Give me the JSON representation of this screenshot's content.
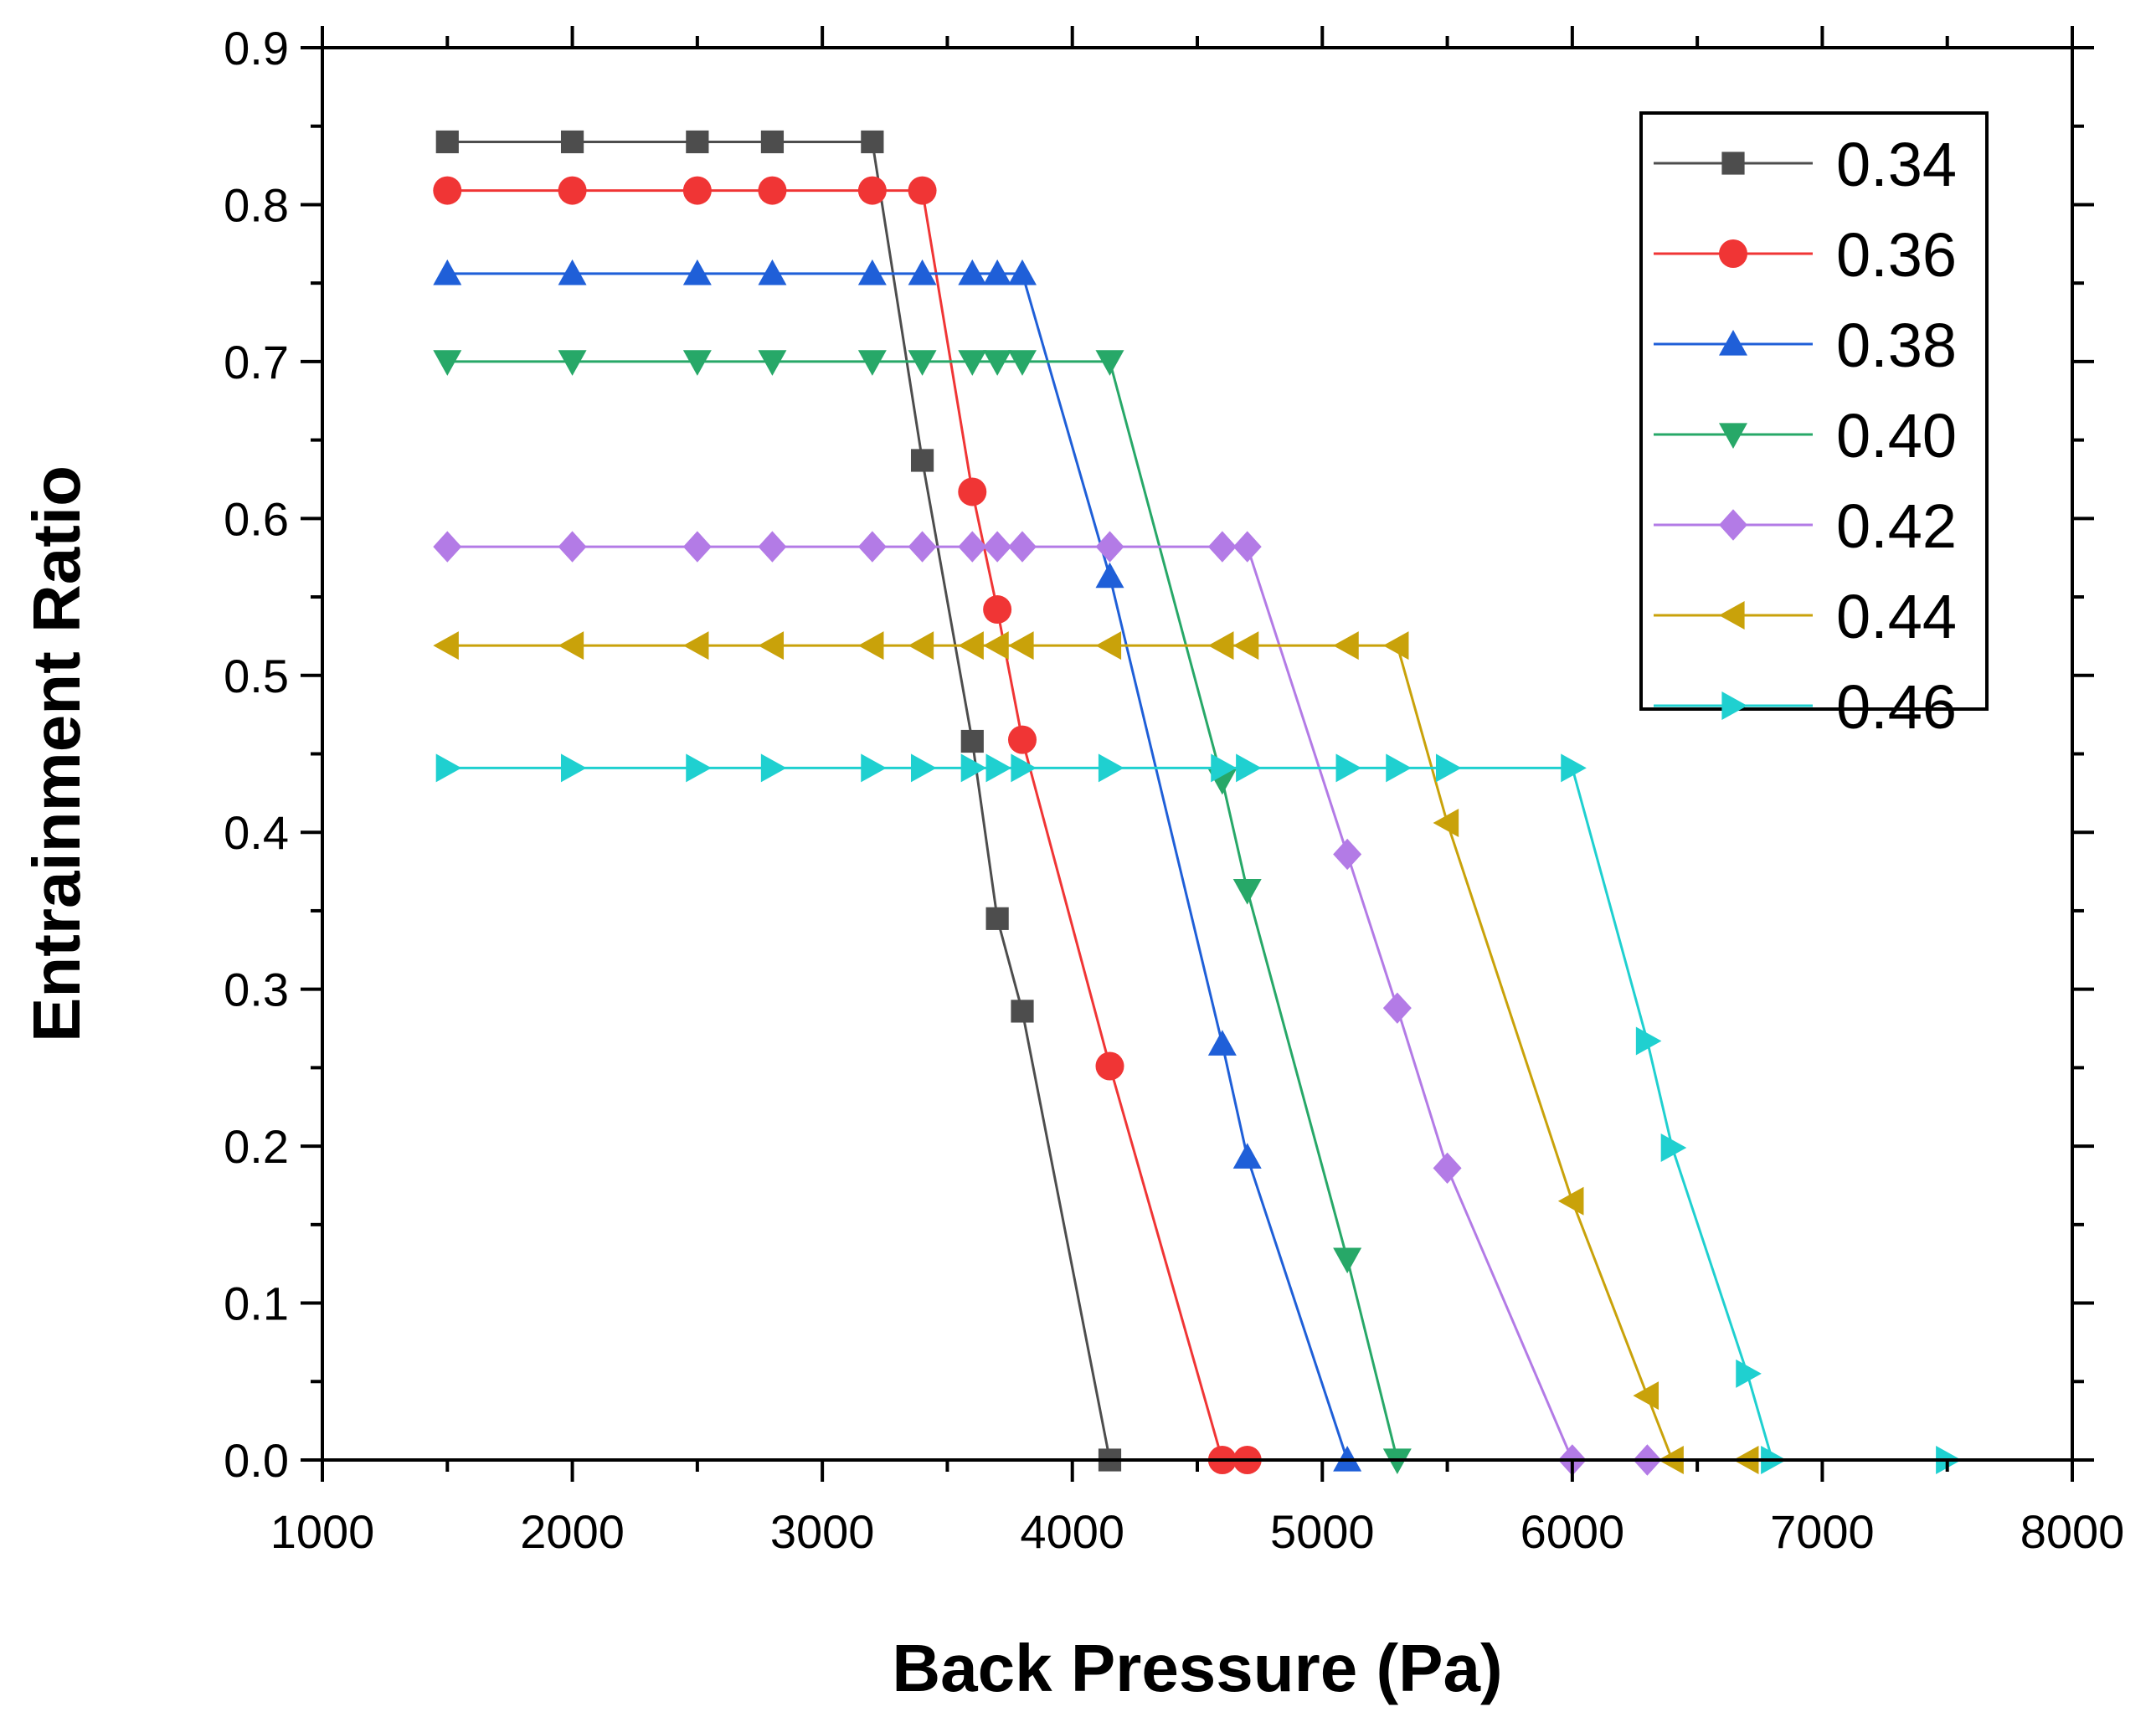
{
  "chart_data": {
    "type": "line",
    "title": "",
    "xlabel": "Back Pressure (Pa)",
    "ylabel": "Entrainment Ratio",
    "xlim": [
      1000,
      8000
    ],
    "ylim": [
      0,
      0.9
    ],
    "xticks": [
      1000,
      2000,
      3000,
      4000,
      5000,
      6000,
      7000,
      8000
    ],
    "yticks": [
      0.0,
      0.1,
      0.2,
      0.3,
      0.4,
      0.5,
      0.6,
      0.7,
      0.8,
      0.9
    ],
    "ytick_labels": [
      "0.0",
      "0.1",
      "0.2",
      "0.3",
      "0.4",
      "0.5",
      "0.6",
      "0.7",
      "0.8",
      "0.9"
    ],
    "grid": false,
    "legend_position": "top-right",
    "series": [
      {
        "name": "0.34",
        "color": "#4d4d4d",
        "marker": "square",
        "x": [
          1500,
          2000,
          2500,
          2800,
          3200,
          3400,
          3600,
          3700,
          3800,
          4150
        ],
        "y": [
          0.84,
          0.84,
          0.84,
          0.84,
          0.84,
          0.637,
          0.458,
          0.345,
          0.286,
          0.0
        ]
      },
      {
        "name": "0.36",
        "color": "#f03535",
        "marker": "circle",
        "x": [
          1500,
          2000,
          2500,
          2800,
          3200,
          3400,
          3600,
          3700,
          3800,
          4150,
          4600,
          4700
        ],
        "y": [
          0.809,
          0.809,
          0.809,
          0.809,
          0.809,
          0.809,
          0.617,
          0.542,
          0.459,
          0.251,
          0.0,
          0.0
        ]
      },
      {
        "name": "0.38",
        "color": "#1f5fd8",
        "marker": "triangle-up",
        "x": [
          1500,
          2000,
          2500,
          2800,
          3200,
          3400,
          3600,
          3700,
          3800,
          4150,
          4600,
          4700,
          5100
        ],
        "y": [
          0.756,
          0.756,
          0.756,
          0.756,
          0.756,
          0.756,
          0.756,
          0.756,
          0.756,
          0.563,
          0.265,
          0.193,
          0.0
        ]
      },
      {
        "name": "0.40",
        "color": "#27a868",
        "marker": "triangle-down",
        "x": [
          1500,
          2000,
          2500,
          2800,
          3200,
          3400,
          3600,
          3700,
          3800,
          4150,
          4600,
          4700,
          5100,
          5300
        ],
        "y": [
          0.7,
          0.7,
          0.7,
          0.7,
          0.7,
          0.7,
          0.7,
          0.7,
          0.7,
          0.7,
          0.433,
          0.363,
          0.128,
          0.0
        ]
      },
      {
        "name": "0.42",
        "color": "#b37be6",
        "marker": "diamond",
        "x": [
          1500,
          2000,
          2500,
          2800,
          3200,
          3400,
          3600,
          3700,
          3800,
          4150,
          4600,
          4700,
          5100,
          5300,
          5500,
          6000,
          6300
        ],
        "y": [
          0.582,
          0.582,
          0.582,
          0.582,
          0.582,
          0.582,
          0.582,
          0.582,
          0.582,
          0.582,
          0.582,
          0.582,
          0.386,
          0.288,
          0.186,
          0.0,
          0.0
        ]
      },
      {
        "name": "0.44",
        "color": "#c9a20a",
        "marker": "triangle-left",
        "x": [
          1500,
          2000,
          2500,
          2800,
          3200,
          3400,
          3600,
          3700,
          3800,
          4150,
          4600,
          4700,
          5100,
          5300,
          5500,
          6000,
          6300,
          6400,
          6700
        ],
        "y": [
          0.519,
          0.519,
          0.519,
          0.519,
          0.519,
          0.519,
          0.519,
          0.519,
          0.519,
          0.519,
          0.519,
          0.519,
          0.519,
          0.519,
          0.406,
          0.165,
          0.041,
          0.0,
          0.0
        ]
      },
      {
        "name": "0.46",
        "color": "#1fd0d0",
        "marker": "triangle-right",
        "x": [
          1500,
          2000,
          2500,
          2800,
          3200,
          3400,
          3600,
          3700,
          3800,
          4150,
          4600,
          4700,
          5100,
          5300,
          5500,
          6000,
          6300,
          6400,
          6700,
          6800,
          7500
        ],
        "y": [
          0.441,
          0.441,
          0.441,
          0.441,
          0.441,
          0.441,
          0.441,
          0.441,
          0.441,
          0.441,
          0.441,
          0.441,
          0.441,
          0.441,
          0.441,
          0.441,
          0.267,
          0.199,
          0.055,
          0.0,
          0.0
        ]
      }
    ]
  }
}
